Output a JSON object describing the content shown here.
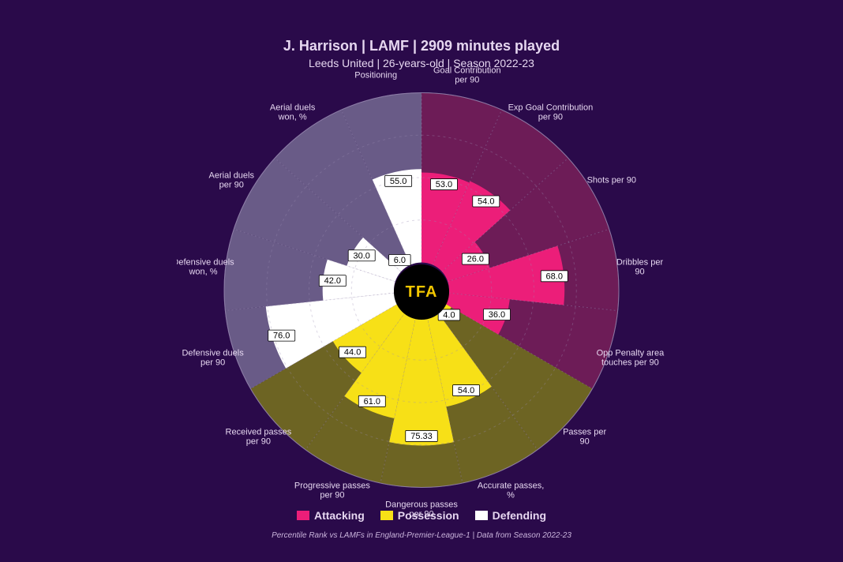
{
  "header": {
    "title_main": "J. Harrison | LAMF | 2909 minutes played",
    "title_sub": "Leeds United | 26-years-old | Season 2022-23"
  },
  "center_label": "TFA",
  "colors": {
    "background": "#2a0a4a",
    "attacking_fill": "#ec1e79",
    "attacking_bg": "#6d1c57",
    "possession_fill": "#f7e017",
    "possession_bg": "#6d6423",
    "defending_fill": "#ffffff",
    "defending_bg": "#695b87",
    "grid": "#9a8bb3",
    "text": "#e6d7f0",
    "value_box_bg": "#ffffff",
    "value_box_text": "#000000",
    "center_bg": "#000000",
    "center_text": "#f2c600"
  },
  "chart": {
    "type": "polar-bar",
    "outer_radius": 250,
    "inner_radius": 35,
    "value_max": 100,
    "grid_steps": [
      25,
      50,
      75,
      100
    ],
    "start_angle_deg": -90,
    "slice_gap_deg": 0,
    "label_radius_offset": 28,
    "label_fontsize": 11,
    "value_fontsize": 11,
    "spoke_width": 1
  },
  "categories": [
    {
      "key": "attacking",
      "label": "Attacking",
      "fill": "#ec1e79",
      "bg": "#6d1c57"
    },
    {
      "key": "possession",
      "label": "Possession",
      "fill": "#f7e017",
      "bg": "#6d6423"
    },
    {
      "key": "defending",
      "label": "Defending",
      "fill": "#ffffff",
      "bg": "#695b87"
    }
  ],
  "metrics": [
    {
      "label": "Goal Contribution per 90",
      "value": 53.0,
      "display": "53.0",
      "category": "attacking"
    },
    {
      "label": "Exp Goal Contribution per 90",
      "value": 54.0,
      "display": "54.0",
      "category": "attacking"
    },
    {
      "label": "Shots per 90",
      "value": 26.0,
      "display": "26.0",
      "category": "attacking"
    },
    {
      "label": "Dribbles per 90",
      "value": 68.0,
      "display": "68.0",
      "category": "attacking"
    },
    {
      "label": "Opp Penalty area touches per 90",
      "value": 36.0,
      "display": "36.0",
      "category": "attacking"
    },
    {
      "label": "Passes per 90",
      "value": 4.0,
      "display": "4.0",
      "category": "possession"
    },
    {
      "label": "Accurate passes, %",
      "value": 54.0,
      "display": "54.0",
      "category": "possession"
    },
    {
      "label": "Dangerous passes per 90",
      "value": 75.33,
      "display": "75.33",
      "category": "possession"
    },
    {
      "label": "Progressive passes per 90",
      "value": 61.0,
      "display": "61.0",
      "category": "possession"
    },
    {
      "label": "Received passes per 90",
      "value": 44.0,
      "display": "44.0",
      "category": "possession"
    },
    {
      "label": "Defensive duels per 90",
      "value": 76.0,
      "display": "76.0",
      "category": "defending"
    },
    {
      "label": "Defensive duels won, %",
      "value": 42.0,
      "display": "42.0",
      "category": "defending"
    },
    {
      "label": "Aerial duels per 90",
      "value": 30.0,
      "display": "30.0",
      "category": "defending"
    },
    {
      "label": "Aerial duels won, %",
      "value": 6.0,
      "display": "6.0",
      "category": "defending"
    },
    {
      "label": "Positioning",
      "value": 55.0,
      "display": "55.0",
      "category": "defending"
    }
  ],
  "footnote": "Percentile Rank vs LAMFs in England-Premier-League-1 | Data from Season 2022-23"
}
